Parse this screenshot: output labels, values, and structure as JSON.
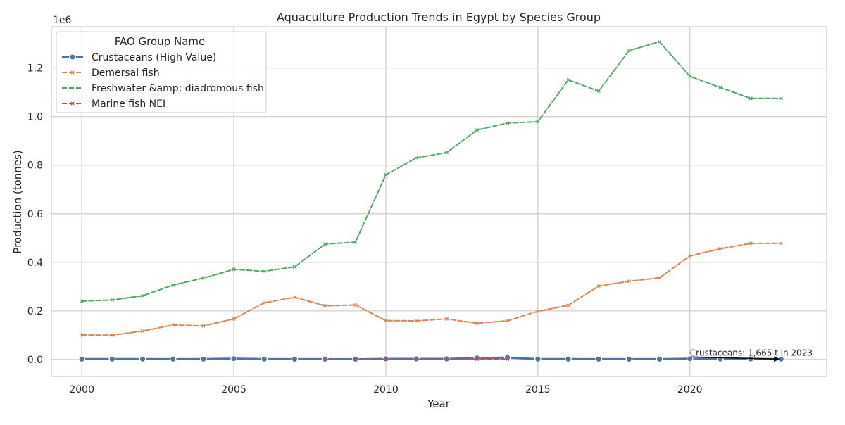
{
  "chart_data": {
    "type": "line",
    "title": "Aquaculture Production Trends in Egypt by Species Group",
    "xlabel": "Year",
    "ylabel": "Production (tonnes)",
    "y_offset_label": "1e6",
    "xlim": [
      1999,
      2024.5
    ],
    "ylim": [
      -70000,
      1370000
    ],
    "x_ticks": [
      2000,
      2005,
      2010,
      2015,
      2020
    ],
    "x_tick_labels": [
      "2000",
      "2005",
      "2010",
      "2015",
      "2020"
    ],
    "y_ticks": [
      0,
      200000,
      400000,
      600000,
      800000,
      1000000,
      1200000
    ],
    "y_tick_labels": [
      "0.0",
      "0.2",
      "0.4",
      "0.6",
      "0.8",
      "1.0",
      "1.2"
    ],
    "grid": true,
    "legend_title": "FAO Group Name",
    "legend_position": "top-left",
    "series": [
      {
        "name": "Crustaceans (High Value)",
        "color": "#4c72b0",
        "style": "solid",
        "marker": "o",
        "x": [
          2000,
          2001,
          2002,
          2003,
          2004,
          2005,
          2006,
          2007,
          2008,
          2009,
          2010,
          2011,
          2012,
          2013,
          2014,
          2015,
          2016,
          2017,
          2018,
          2019,
          2020,
          2021,
          2022,
          2023
        ],
        "y": [
          1500,
          1500,
          1600,
          1400,
          1600,
          3500,
          1500,
          1200,
          1200,
          1100,
          2500,
          2500,
          2500,
          6000,
          8000,
          1500,
          1500,
          1200,
          1200,
          1200,
          3000,
          2000,
          2000,
          1665
        ]
      },
      {
        "name": "Demersal fish",
        "color": "#dd8452",
        "style": "dashed",
        "marker": "x",
        "x": [
          2000,
          2001,
          2002,
          2003,
          2004,
          2005,
          2006,
          2007,
          2008,
          2009,
          2010,
          2011,
          2012,
          2013,
          2014,
          2015,
          2016,
          2017,
          2018,
          2019,
          2020,
          2021,
          2022,
          2023
        ],
        "y": [
          101000,
          100000,
          117000,
          142000,
          138000,
          167000,
          233000,
          256000,
          221000,
          224000,
          160000,
          159000,
          167000,
          149000,
          159000,
          198000,
          223000,
          302000,
          322000,
          336000,
          426000,
          456000,
          478000,
          478000
        ]
      },
      {
        "name": "Freshwater &amp; diadromous fish",
        "color": "#55a868",
        "style": "dashed",
        "marker": "x",
        "x": [
          2000,
          2001,
          2002,
          2003,
          2004,
          2005,
          2006,
          2007,
          2008,
          2009,
          2010,
          2011,
          2012,
          2013,
          2014,
          2015,
          2016,
          2017,
          2018,
          2019,
          2020,
          2021,
          2022,
          2023
        ],
        "y": [
          240000,
          245000,
          262000,
          306000,
          335000,
          371000,
          363000,
          381000,
          475000,
          483000,
          760000,
          830000,
          852000,
          945000,
          973000,
          979000,
          1151000,
          1105000,
          1272000,
          1308000,
          1166000,
          1120000,
          1075000,
          1075000
        ]
      },
      {
        "name": "Marine fish NEI",
        "color": "#c44e52",
        "style": "dashed",
        "marker": "x",
        "x": [
          2008,
          2009,
          2010,
          2011,
          2012,
          2013,
          2014
        ],
        "y": [
          300,
          300,
          400,
          400,
          400,
          1500,
          1200
        ]
      }
    ],
    "annotations": [
      {
        "text": "Crustaceans: 1,665 t in 2023",
        "x": 2023,
        "y": 1665
      }
    ]
  }
}
